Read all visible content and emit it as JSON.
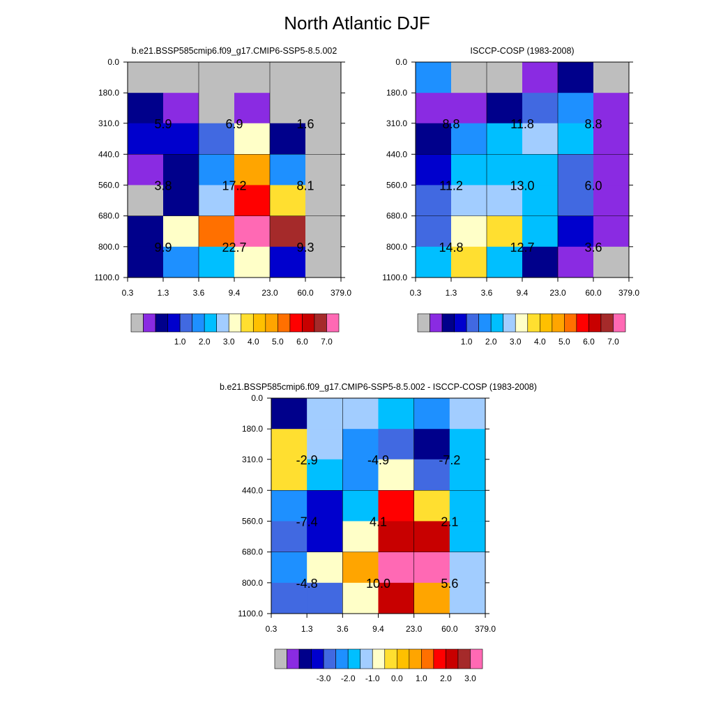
{
  "figure_title": "North Atlantic DJF",
  "chart_data": [
    {
      "type": "heatmap",
      "title": "b.e21.BSSP585cmip6.f09_g17.CMIP6-SSP5-8.5.002",
      "x_ticks": [
        "0.3",
        "1.3",
        "3.6",
        "9.4",
        "23.0",
        "60.0",
        "379.0"
      ],
      "y_ticks": [
        "0.0",
        "180.0",
        "310.0",
        "440.0",
        "560.0",
        "680.0",
        "800.0",
        "1100.0"
      ],
      "cells": [
        [
          "#BEBEBE",
          "#BEBEBE",
          "#BEBEBE",
          "#BEBEBE",
          "#BEBEBE",
          "#BEBEBE"
        ],
        [
          "#00008B",
          "#8A2BE2",
          "#BEBEBE",
          "#8A2BE2",
          "#BEBEBE",
          "#BEBEBE"
        ],
        [
          "#0000CD",
          "#0000CD",
          "#4169E1",
          "#FFFFC8",
          "#00008B",
          "#BEBEBE"
        ],
        [
          "#8A2BE2",
          "#00008B",
          "#1E90FF",
          "#FFA500",
          "#1E90FF",
          "#BEBEBE"
        ],
        [
          "#BEBEBE",
          "#00008B",
          "#A2CDFF",
          "#FF0000",
          "#FFDF30",
          "#BEBEBE"
        ],
        [
          "#00008B",
          "#FFFFC8",
          "#FF7000",
          "#FF69B4",
          "#A52A2A",
          "#BEBEBE"
        ],
        [
          "#00008B",
          "#1E90FF",
          "#00BFFF",
          "#FFFFC8",
          "#0000CD",
          "#BEBEBE"
        ]
      ],
      "block_labels": [
        [
          "5.9",
          "6.9",
          "1.6"
        ],
        [
          "3.8",
          "17.2",
          "8.1"
        ],
        [
          "9.9",
          "22.7",
          "9.3"
        ]
      ],
      "colorbar_labels": [
        "1.0",
        "2.0",
        "3.0",
        "4.0",
        "5.0",
        "6.0",
        "7.0"
      ]
    },
    {
      "type": "heatmap",
      "title": "ISCCP-COSP (1983-2008)",
      "x_ticks": [
        "0.3",
        "1.3",
        "3.6",
        "9.4",
        "23.0",
        "60.0",
        "379.0"
      ],
      "y_ticks": [
        "0.0",
        "180.0",
        "310.0",
        "440.0",
        "560.0",
        "680.0",
        "800.0",
        "1100.0"
      ],
      "cells": [
        [
          "#1E90FF",
          "#BEBEBE",
          "#BEBEBE",
          "#8A2BE2",
          "#00008B",
          "#BEBEBE"
        ],
        [
          "#8A2BE2",
          "#8A2BE2",
          "#00008B",
          "#4169E1",
          "#1E90FF",
          "#8A2BE2"
        ],
        [
          "#00008B",
          "#1E90FF",
          "#00BFFF",
          "#A2CDFF",
          "#00BFFF",
          "#8A2BE2"
        ],
        [
          "#0000CD",
          "#00BFFF",
          "#00BFFF",
          "#00BFFF",
          "#4169E1",
          "#8A2BE2"
        ],
        [
          "#4169E1",
          "#A2CDFF",
          "#A2CDFF",
          "#00BFFF",
          "#4169E1",
          "#8A2BE2"
        ],
        [
          "#4169E1",
          "#FFFFC8",
          "#FFDF30",
          "#00BFFF",
          "#0000CD",
          "#8A2BE2"
        ],
        [
          "#00BFFF",
          "#FFDF30",
          "#00BFFF",
          "#00008B",
          "#8A2BE2",
          "#BEBEBE"
        ]
      ],
      "block_labels": [
        [
          "8.8",
          "11.8",
          "8.8"
        ],
        [
          "11.2",
          "13.0",
          "6.0"
        ],
        [
          "14.8",
          "12.7",
          "3.6"
        ]
      ],
      "colorbar_labels": [
        "1.0",
        "2.0",
        "3.0",
        "4.0",
        "5.0",
        "6.0",
        "7.0"
      ]
    },
    {
      "type": "heatmap",
      "title": "b.e21.BSSP585cmip6.f09_g17.CMIP6-SSP5-8.5.002 - ISCCP-COSP (1983-2008)",
      "x_ticks": [
        "0.3",
        "1.3",
        "3.6",
        "9.4",
        "23.0",
        "60.0",
        "379.0"
      ],
      "y_ticks": [
        "0.0",
        "180.0",
        "310.0",
        "440.0",
        "560.0",
        "680.0",
        "800.0",
        "1100.0"
      ],
      "cells": [
        [
          "#00008B",
          "#A2CDFF",
          "#A2CDFF",
          "#00BFFF",
          "#1E90FF",
          "#A2CDFF"
        ],
        [
          "#FFDF30",
          "#A2CDFF",
          "#1E90FF",
          "#4169E1",
          "#00008B",
          "#00BFFF"
        ],
        [
          "#FFDF30",
          "#00BFFF",
          "#1E90FF",
          "#FFFFC8",
          "#4169E1",
          "#00BFFF"
        ],
        [
          "#1E90FF",
          "#0000CD",
          "#00BFFF",
          "#FF0000",
          "#FFDF30",
          "#00BFFF"
        ],
        [
          "#4169E1",
          "#0000CD",
          "#FFFFC8",
          "#C80000",
          "#C80000",
          "#00BFFF"
        ],
        [
          "#1E90FF",
          "#FFFFC8",
          "#FFA500",
          "#FF69B4",
          "#FF69B4",
          "#A2CDFF"
        ],
        [
          "#4169E1",
          "#4169E1",
          "#FFFFC8",
          "#C80000",
          "#FFA500",
          "#A2CDFF"
        ]
      ],
      "block_labels": [
        [
          "-2.9",
          "-4.9",
          "-7.2"
        ],
        [
          "-7.4",
          "4.1",
          "2.1"
        ],
        [
          "-4.8",
          "10.0",
          "5.6"
        ]
      ],
      "colorbar_labels": [
        "-3.0",
        "-2.0",
        "-1.0",
        "0.0",
        "1.0",
        "2.0",
        "3.0"
      ]
    }
  ],
  "colorbar_colors": [
    "#BEBEBE",
    "#8A2BE2",
    "#00008B",
    "#0000CD",
    "#4169E1",
    "#1E90FF",
    "#00BFFF",
    "#A2CDFF",
    "#FFFFC8",
    "#FFDF30",
    "#FFC000",
    "#FFA500",
    "#FF7000",
    "#FF0000",
    "#C80000",
    "#A52A2A",
    "#FF69B4"
  ]
}
